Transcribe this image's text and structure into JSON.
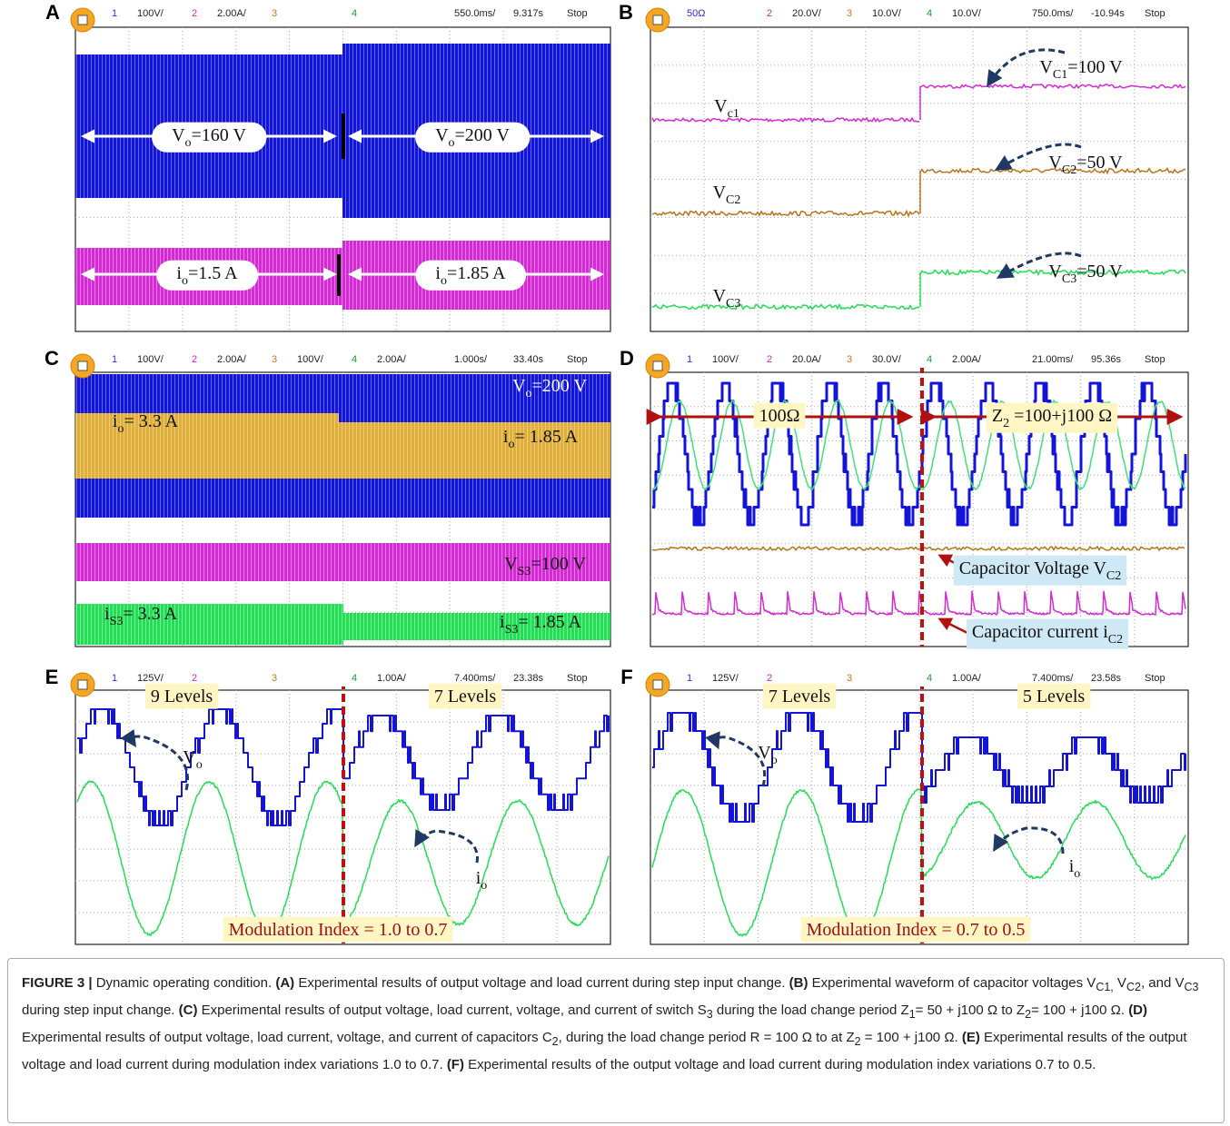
{
  "panels": [
    {
      "label": "A",
      "header": {
        "channels": [
          {
            "num": "1",
            "scale": "100V/"
          },
          {
            "num": "2",
            "scale": "2.00A/"
          },
          {
            "num": "3"
          },
          {
            "num": "4"
          }
        ],
        "timebase": "550.0ms/",
        "offset": "9.317s",
        "status": "Stop"
      },
      "annotations": [
        {
          "text": "V",
          "sub": "o",
          "rest": "=160 V"
        },
        {
          "text": "V",
          "sub": "o",
          "rest": "=200 V"
        },
        {
          "text": "i",
          "sub": "o",
          "rest": "=1.5 A"
        },
        {
          "text": "i",
          "sub": "o",
          "rest": "=1.85 A"
        }
      ]
    },
    {
      "label": "B",
      "header": {
        "channels": [
          {
            "scale": "50Ω"
          },
          {
            "num": "2",
            "scale": "20.0V/"
          },
          {
            "num": "3",
            "scale": "10.0V/"
          },
          {
            "num": "4",
            "scale": "10.0V/"
          }
        ],
        "timebase": "750.0ms/",
        "offset": "-10.94s",
        "status": "Stop"
      },
      "annotations": [
        {
          "text": "V",
          "sub": "C1",
          "rest": "=100 V"
        },
        {
          "text": "V",
          "sub": "c1"
        },
        {
          "text": "V",
          "sub": "C2",
          "rest": "=50 V"
        },
        {
          "text": "V",
          "sub": "C2"
        },
        {
          "text": "V",
          "sub": "C3",
          "rest": "=50 V"
        },
        {
          "text": "V",
          "sub": "C3"
        }
      ]
    },
    {
      "label": "C",
      "header": {
        "channels": [
          {
            "num": "1",
            "scale": "100V/"
          },
          {
            "num": "2",
            "scale": "2.00A/"
          },
          {
            "num": "3",
            "scale": "100V/"
          },
          {
            "num": "4",
            "scale": "2.00A/"
          }
        ],
        "timebase": "1.000s/",
        "offset": "33.40s",
        "status": "Stop"
      },
      "annotations": [
        {
          "text": "V",
          "sub": "o",
          "rest": "=200 V"
        },
        {
          "text": "i",
          "sub": "o",
          "rest": "= 3.3 A"
        },
        {
          "text": "i",
          "sub": "o",
          "rest": "= 1.85 A"
        },
        {
          "text": "V",
          "sub": "S3",
          "rest": "=100 V"
        },
        {
          "text": "i",
          "sub": "S3",
          "rest": "= 3.3 A"
        },
        {
          "text": "i",
          "sub": "S3",
          "rest": "= 1.85 A"
        }
      ]
    },
    {
      "label": "D",
      "header": {
        "channels": [
          {
            "num": "1",
            "scale": "100V/"
          },
          {
            "num": "2",
            "scale": "20.0A/"
          },
          {
            "num": "3",
            "scale": "30.0V/"
          },
          {
            "num": "4",
            "scale": "2.00A/"
          }
        ],
        "timebase": "21.00ms/",
        "offset": "95.36s",
        "status": "Stop"
      },
      "annotations": [
        {
          "text": "100Ω"
        },
        {
          "text": "Z",
          "sub": "2",
          "rest": " =100+j100 Ω"
        },
        {
          "text": "Capacitor Voltage V",
          "sub": "C2"
        },
        {
          "text": "Capacitor current i",
          "sub": "C2"
        }
      ]
    },
    {
      "label": "E",
      "header": {
        "channels": [
          {
            "num": "1",
            "scale": "125V/"
          },
          {
            "num": "2"
          },
          {
            "num": "3"
          },
          {
            "num": "4",
            "scale": "1.00A/"
          }
        ],
        "timebase": "7.400ms/",
        "offset": "23.38s",
        "status": "Stop"
      },
      "annotations": [
        {
          "text": "9 Levels"
        },
        {
          "text": "7 Levels"
        },
        {
          "text": "V",
          "sub": "o"
        },
        {
          "text": "i",
          "sub": "o"
        },
        {
          "text": "Modulation Index = 1.0 to 0.7"
        }
      ]
    },
    {
      "label": "F",
      "header": {
        "channels": [
          {
            "num": "1",
            "scale": "125V/"
          },
          {
            "num": "2"
          },
          {
            "num": "3"
          },
          {
            "num": "4",
            "scale": "1.00A/"
          }
        ],
        "timebase": "7.400ms/",
        "offset": "23.58s",
        "status": "Stop"
      },
      "annotations": [
        {
          "text": "7 Levels"
        },
        {
          "text": "5 Levels"
        },
        {
          "text": "V",
          "sub": "o"
        },
        {
          "text": "i",
          "sub": "o"
        },
        {
          "text": "Modulation Index = 0.7 to 0.5"
        }
      ]
    }
  ],
  "caption": {
    "segments": [
      {
        "text": "FIGURE 3 |",
        "style": "bold"
      },
      {
        "text": " Dynamic operating condition. "
      },
      {
        "text": "(A)",
        "style": "bold"
      },
      {
        "text": " Experimental results of output voltage and load current during step input change. "
      },
      {
        "text": "(B)",
        "style": "bold"
      },
      {
        "text": " Experimental waveform of capacitor voltages V"
      },
      {
        "text": "C1,",
        "style": "sub"
      },
      {
        "text": " V"
      },
      {
        "text": "C2",
        "style": "sub"
      },
      {
        "text": ", and V"
      },
      {
        "text": "C3",
        "style": "sub"
      },
      {
        "text": " during step input change. "
      },
      {
        "text": "(C)",
        "style": "bold"
      },
      {
        "text": " Experimental results of output voltage, load current, voltage, and current of switch S"
      },
      {
        "text": "3",
        "style": "sub"
      },
      {
        "text": " during the load change period Z"
      },
      {
        "text": "1",
        "style": "sub"
      },
      {
        "text": "= 50 + j100 Ω to Z"
      },
      {
        "text": "2",
        "style": "sub"
      },
      {
        "text": "= 100 + j100 Ω. "
      },
      {
        "text": "(D)",
        "style": "bold"
      },
      {
        "text": " Experimental results of output voltage, load current, voltage, and current of capacitors C"
      },
      {
        "text": "2",
        "style": "sub"
      },
      {
        "text": ", during the load change period R = 100 Ω to at Z"
      },
      {
        "text": "2",
        "style": "sub"
      },
      {
        "text": " = 100 + j100 Ω. "
      },
      {
        "text": "(E)",
        "style": "bold"
      },
      {
        "text": " Experimental results of the output voltage and load current during modulation index variations 1.0 to 0.7. "
      },
      {
        "text": "(F)",
        "style": "bold"
      },
      {
        "text": " Experimental results of the output voltage and load current during modulation index variations 0.7 to 0.5."
      }
    ]
  }
}
